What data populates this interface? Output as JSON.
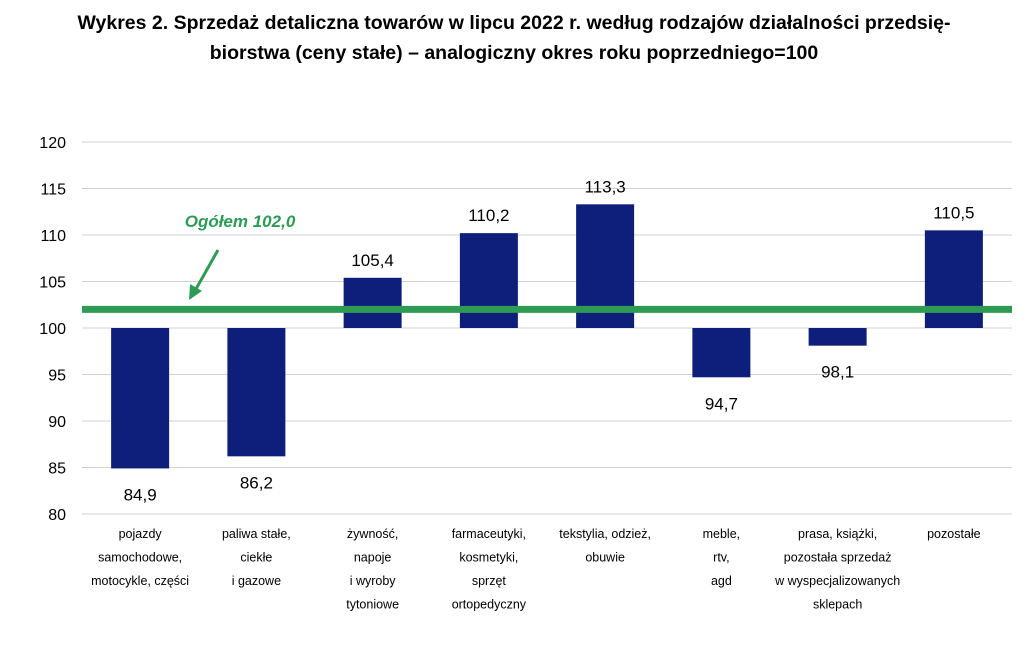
{
  "title_line1": "Wykres 2. Sprzedaż detaliczna towarów w lipcu 2022 r. według rodzajów działalności przedsię-",
  "title_line2": "biorstwa (ceny stałe) – analogiczny okres roku poprzedniego=100",
  "colors": {
    "bar": "#0d1f7a",
    "reference_line": "#2e9b55",
    "annotation": "#2e9b55",
    "grid": "#d0d0d0"
  },
  "chart_data": {
    "type": "bar",
    "baseline": 100,
    "ylim": [
      80,
      120
    ],
    "yticks": [
      80,
      85,
      90,
      95,
      100,
      105,
      110,
      115,
      120
    ],
    "grid": true,
    "categories": [
      [
        "pojazdy",
        "samochodowe,",
        "motocykle, części"
      ],
      [
        "paliwa stałe,",
        "ciekłe",
        "i gazowe"
      ],
      [
        "żywność,",
        "napoje",
        "i wyroby",
        "tytoniowe"
      ],
      [
        "farmaceutyki,",
        "kosmetyki,",
        "sprzęt",
        "ortopedyczny"
      ],
      [
        "tekstylia, odzież,",
        "obuwie"
      ],
      [
        "meble,",
        "rtv,",
        "agd"
      ],
      [
        "prasa, książki,",
        "pozostała sprzedaż",
        "w wyspecjalizowanych",
        "sklepach"
      ],
      [
        "pozostałe"
      ]
    ],
    "values": [
      84.9,
      86.2,
      105.4,
      110.2,
      113.3,
      94.7,
      98.1,
      110.5
    ],
    "value_labels": [
      "84,9",
      "86,2",
      "105,4",
      "110,2",
      "113,3",
      "94,7",
      "98,1",
      "110,5"
    ],
    "reference_line": {
      "value": 102.0,
      "label": "Ogółem 102,0"
    }
  }
}
